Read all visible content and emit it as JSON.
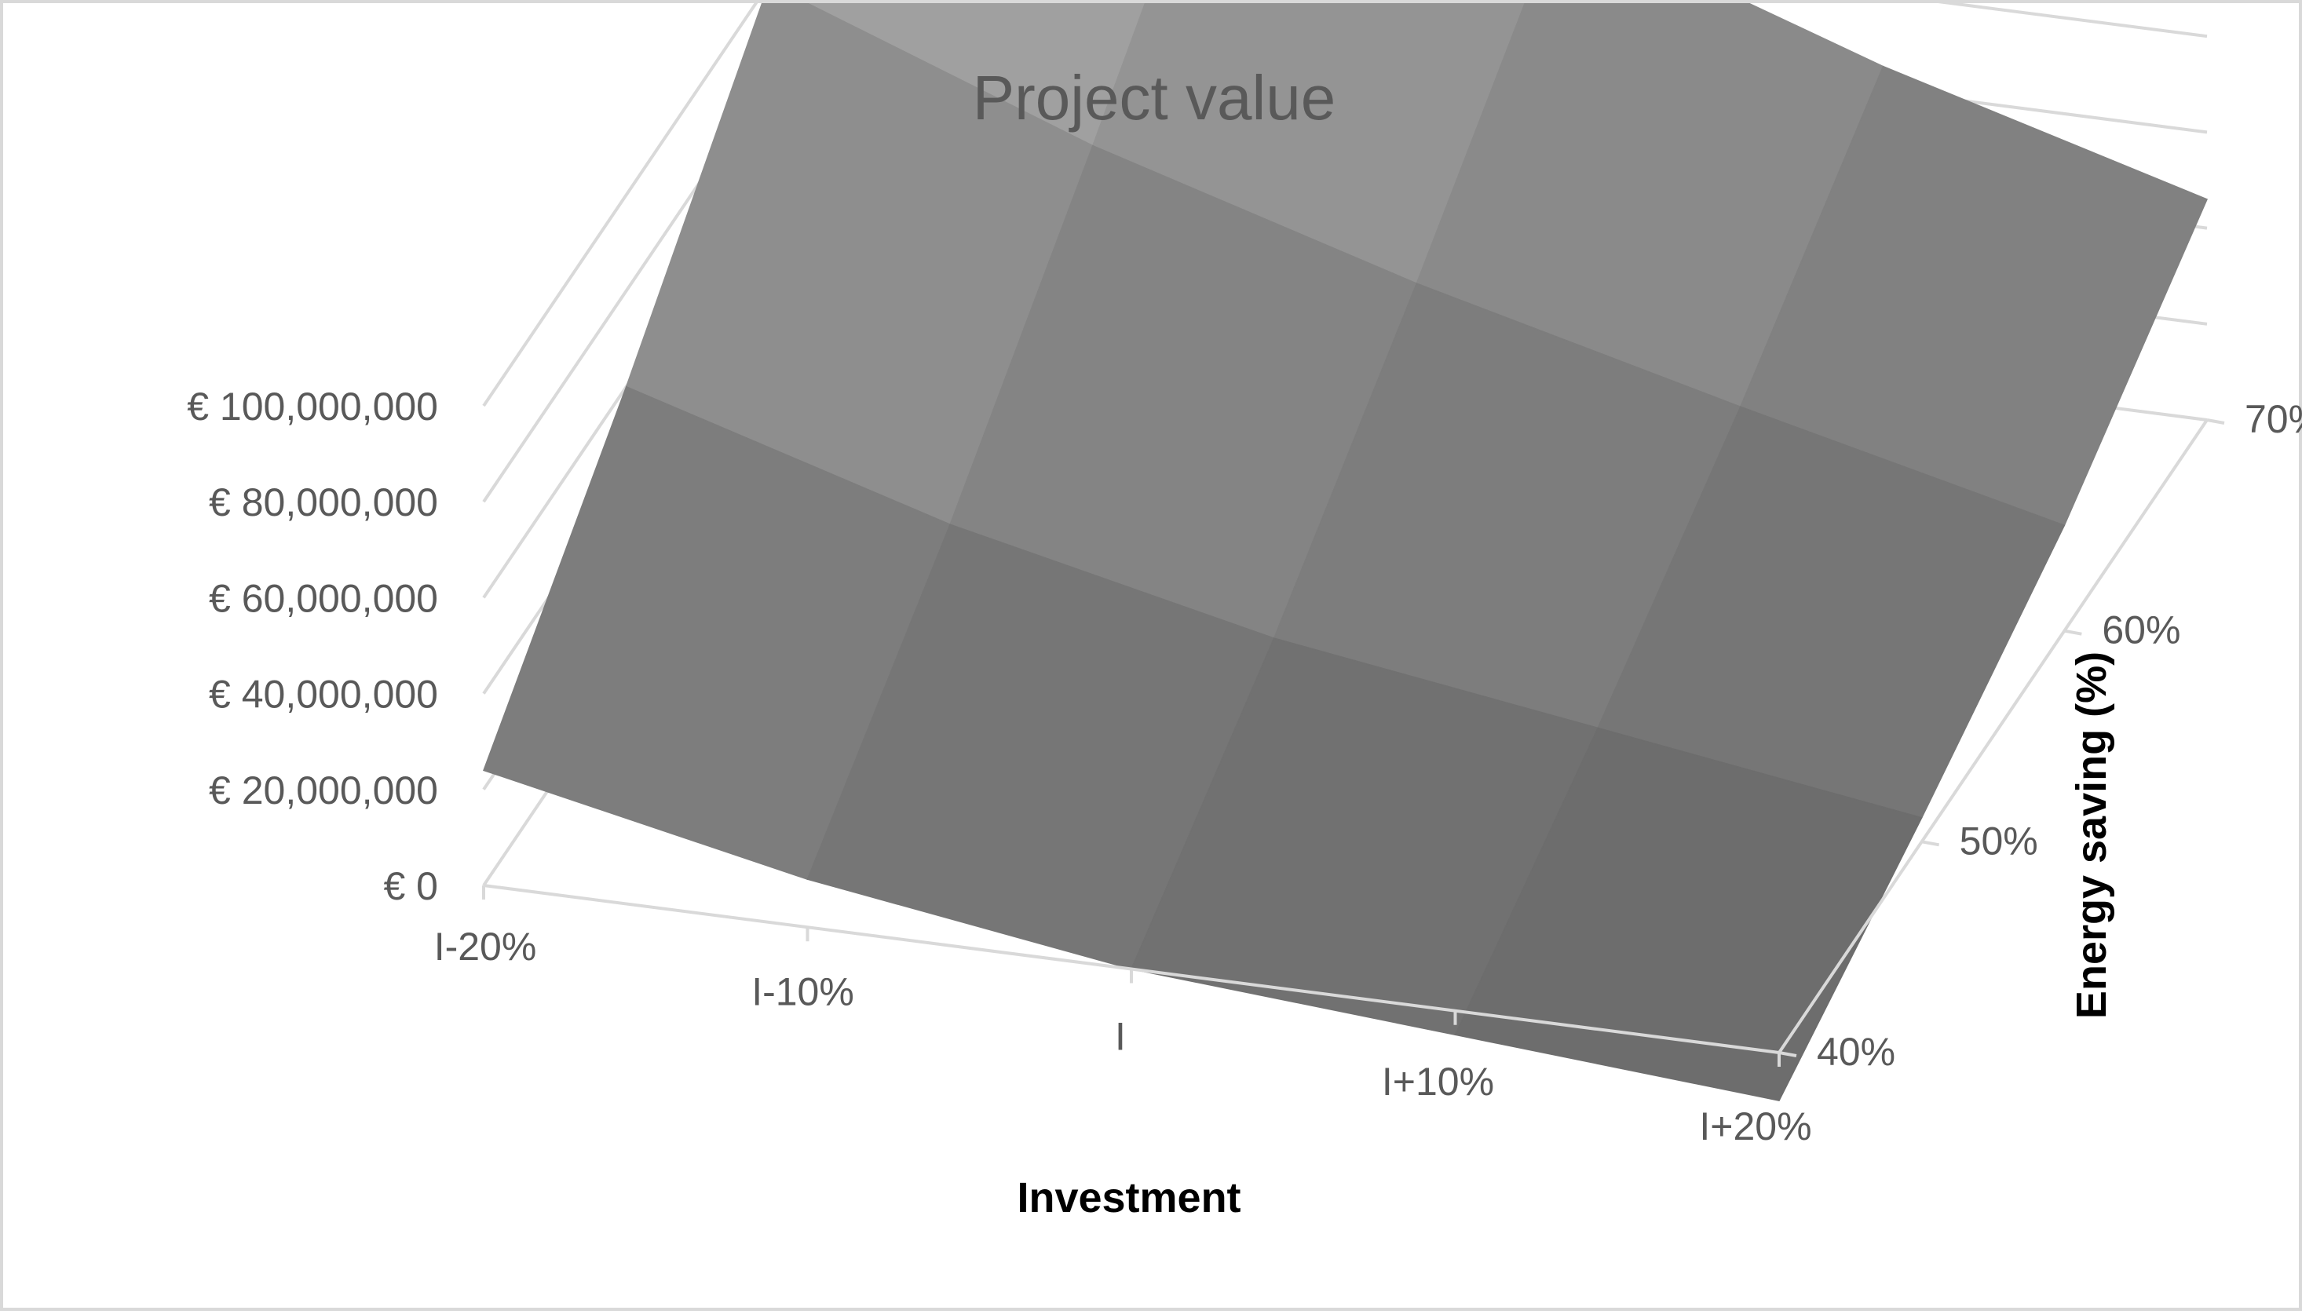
{
  "chart_data": {
    "type": "surface",
    "title": "Project value",
    "xlabel": "Investment",
    "ylabel": "Energy saving (%)",
    "zlabel": "",
    "categories": [
      "I-20%",
      "I-10%",
      "I",
      "I+10%",
      "I+20%"
    ],
    "depth_categories": [
      "40%",
      "50%",
      "60%",
      "70%"
    ],
    "z_ticks": [
      "€ 0",
      "€ 20,000,000",
      "€ 40,000,000",
      "€ 60,000,000",
      "€ 80,000,000",
      "€ 100,000,000"
    ],
    "zlim": [
      0,
      100000000
    ],
    "series": [
      {
        "name": "40%",
        "values": [
          24000000,
          10000000,
          0,
          -5000000,
          -10000000
        ]
      },
      {
        "name": "50%",
        "values": [
          60000000,
          40000000,
          25000000,
          15000000,
          5000000
        ]
      },
      {
        "name": "60%",
        "values": [
          100000000,
          75000000,
          55000000,
          38000000,
          22000000
        ]
      },
      {
        "name": "70%",
        "values": [
          140000000,
          112000000,
          88000000,
          65000000,
          46000000
        ]
      }
    ],
    "grid": true,
    "legend": "none",
    "colors": {
      "surface_light": "#a8a8a8",
      "surface_dark": "#6e6e6e",
      "gridline": "#d9d9d9",
      "text": "#595959",
      "axis_label": "#000000"
    }
  }
}
